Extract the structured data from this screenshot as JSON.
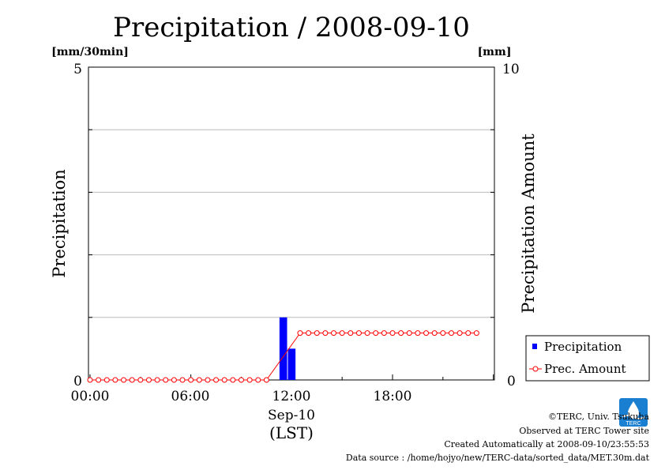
{
  "chart_data": {
    "type": "bar",
    "title": "Precipitation / 2008-09-10",
    "ylabel_left": "Precipitation",
    "ylabel_right": "Precipitation Amount",
    "unit_left": "[mm/30min]",
    "unit_right": "[mm]",
    "ylim_left": [
      0,
      5
    ],
    "ylim_right": [
      0,
      10
    ],
    "left_ticks": [
      "0",
      "5"
    ],
    "right_ticks": [
      "0",
      "10"
    ],
    "grid": true,
    "x_ticks": [
      "00:00",
      "06:00",
      "12:00",
      "18:00"
    ],
    "date_label": "Sep-10",
    "tz_label": "(LST)",
    "legend_position": "bottom-right",
    "series": [
      {
        "name": "Precipitation",
        "type": "bar",
        "axis": "left",
        "color": "#0000ff",
        "points": [
          {
            "time": "11:30",
            "value": 1.0
          },
          {
            "time": "12:00",
            "value": 0.5
          }
        ]
      },
      {
        "name": "Prec. Amount",
        "type": "line",
        "axis": "right",
        "color": "#ff0000",
        "times": [
          "00:00",
          "00:30",
          "01:00",
          "01:30",
          "02:00",
          "02:30",
          "03:00",
          "03:30",
          "04:00",
          "04:30",
          "05:00",
          "05:30",
          "06:00",
          "06:30",
          "07:00",
          "07:30",
          "08:00",
          "08:30",
          "09:00",
          "09:30",
          "10:00",
          "10:30",
          "12:30",
          "13:00",
          "13:30",
          "14:00",
          "14:30",
          "15:00",
          "15:30",
          "16:00",
          "16:30",
          "17:00",
          "17:30",
          "18:00",
          "18:30",
          "19:00",
          "19:30",
          "20:00",
          "20:30",
          "21:00",
          "21:30",
          "22:00",
          "22:30",
          "23:00"
        ],
        "values": [
          0,
          0,
          0,
          0,
          0,
          0,
          0,
          0,
          0,
          0,
          0,
          0,
          0,
          0,
          0,
          0,
          0,
          0,
          0,
          0,
          0,
          0,
          1.5,
          1.5,
          1.5,
          1.5,
          1.5,
          1.5,
          1.5,
          1.5,
          1.5,
          1.5,
          1.5,
          1.5,
          1.5,
          1.5,
          1.5,
          1.5,
          1.5,
          1.5,
          1.5,
          1.5,
          1.5,
          1.5
        ]
      }
    ]
  },
  "footer": {
    "copyright": "©TERC, Univ. Tsukuba",
    "observed": "Observed at TERC Tower site",
    "created": "Created Automatically at 2008-09-10/23:55:53",
    "source": "Data source : /home/hojyo/new/TERC-data/sorted_data/MET.30m.dat"
  },
  "logo": {
    "text": "TERC",
    "color": "#1a7fd0"
  }
}
